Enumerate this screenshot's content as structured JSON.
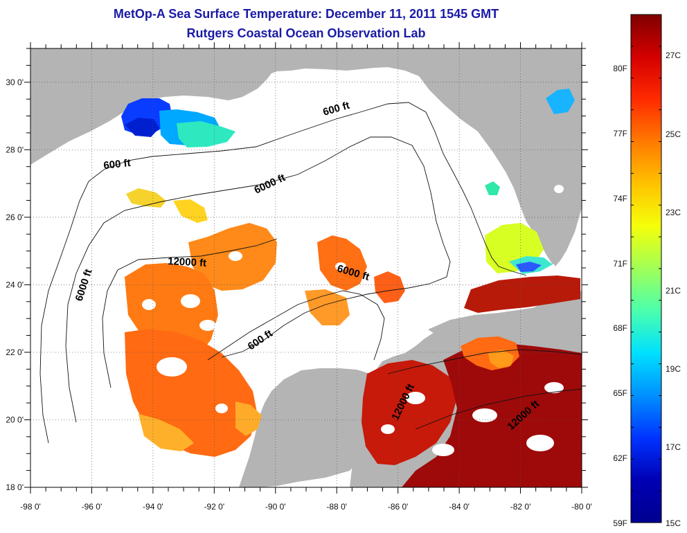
{
  "title": {
    "line1": "MetOp-A Sea Surface Temperature:  December 11, 2011 1545 GMT",
    "line2": "Rutgers Coastal Ocean Observation Lab"
  },
  "map": {
    "lon_range": [
      -98,
      -80
    ],
    "lat_range": [
      18,
      31
    ],
    "x_tick_labels": [
      "-98 0'",
      "-96 0'",
      "-94 0'",
      "-92 0'",
      "-90 0'",
      "-88 0'",
      "-86 0'",
      "-84 0'",
      "-82 0'",
      "-80 0'"
    ],
    "y_tick_labels": [
      "18 0'",
      "20 0'",
      "22 0'",
      "24 0'",
      "26 0'",
      "28 0'",
      "30 0'"
    ],
    "grid": "dotted",
    "land_color": "#b4b4b4",
    "no_data_color": "#ffffff",
    "contour_labels": [
      "600 ft",
      "600 ft",
      "6000 ft",
      "12000 ft",
      "6000 ft",
      "6000 ft",
      "600 ft",
      "12000 ft",
      "12000 ft"
    ]
  },
  "colorbar": {
    "min_c": 15,
    "max_c": 28.5,
    "fahrenheit_labels": [
      "80F",
      "77F",
      "74F",
      "71F",
      "68F",
      "65F",
      "62F",
      "59F"
    ],
    "celsius_labels": [
      "27C",
      "25C",
      "23C",
      "21C",
      "19C",
      "17C",
      "15C"
    ],
    "gradient_colors": [
      "#7f0000",
      "#d40000",
      "#ff2a00",
      "#ff7a00",
      "#ffc200",
      "#f5ff0a",
      "#a0ff57",
      "#4affad",
      "#00e0ff",
      "#0090ff",
      "#0033ff",
      "#0000b4",
      "#00008f"
    ]
  }
}
